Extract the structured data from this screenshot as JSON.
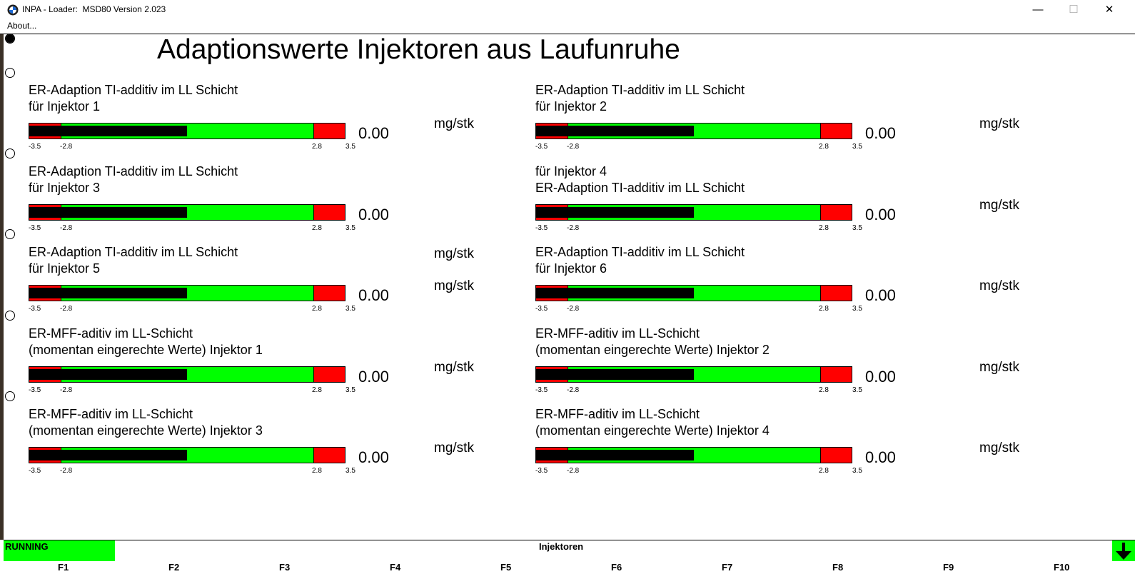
{
  "window": {
    "title": "INPA - Loader:  MSD80 Version 2.023",
    "min_glyph": "—",
    "max_glyph": "☐",
    "close_glyph": "✕"
  },
  "menu": {
    "about": "About..."
  },
  "page": {
    "title": "Adaptionswerte Injektoren aus Laufunruhe"
  },
  "radios": [
    {
      "selected": true
    },
    {
      "selected": false
    },
    {
      "selected": false
    },
    {
      "selected": false
    },
    {
      "selected": false
    },
    {
      "selected": false
    }
  ],
  "gauges": [
    {
      "line1": "ER-Adaption TI-additiv im LL Schicht",
      "line2": "für Injektor 1",
      "value": "0.00",
      "unit": "mg/stk"
    },
    {
      "line1": "ER-Adaption TI-additiv im LL Schicht",
      "line2": "für Injektor 2",
      "value": "0.00",
      "unit": "mg/stk"
    },
    {
      "line1": "ER-Adaption TI-additiv im LL Schicht",
      "line2": "für Injektor 3",
      "value": "0.00",
      "unit": "mg/stk"
    },
    {
      "line1": "für Injektor 4",
      "line2": "ER-Adaption TI-additiv im LL Schicht",
      "value": "0.00",
      "unit": "mg/stk"
    },
    {
      "line1": "ER-Adaption TI-additiv im LL Schicht",
      "line2": "für Injektor 5",
      "value": "0.00",
      "unit": "mg/stk"
    },
    {
      "line1": "ER-Adaption TI-additiv im LL Schicht",
      "line2": "für Injektor 6",
      "value": "0.00",
      "unit": "mg/stk"
    },
    {
      "line1": "ER-MFF-aditiv im LL-Schicht",
      "line2": "(momentan eingerechte Werte) Injektor 1",
      "value": "0.00",
      "unit": "mg/stk"
    },
    {
      "line1": "ER-MFF-aditiv im LL-Schicht",
      "line2": "(momentan eingerechte Werte) Injektor 2",
      "value": "0.00",
      "unit": "mg/stk"
    },
    {
      "line1": "ER-MFF-aditiv im LL-Schicht",
      "line2": "(momentan eingerechte Werte) Injektor 3",
      "value": "0.00",
      "unit": "mg/stk"
    },
    {
      "line1": "ER-MFF-aditiv im LL-Schicht",
      "line2": "(momentan eingerechte Werte) Injektor 4",
      "value": "0.00",
      "unit": "mg/stk"
    }
  ],
  "scale": {
    "min": "-3.5",
    "low": "-2.8",
    "high": "2.8",
    "max": "3.5",
    "min_value": -3.5,
    "low_value": -2.8,
    "high_value": 2.8,
    "max_value": 3.5
  },
  "colors": {
    "ok": "#00ff00",
    "limit": "#ff0000",
    "indicator": "#000000"
  },
  "status": {
    "state": "RUNNING",
    "screen": "Injektoren",
    "arrow_icon": "down-arrow-icon",
    "fkeys": [
      "F1",
      "F2",
      "F3",
      "F4",
      "F5",
      "F6",
      "F7",
      "F8",
      "F9",
      "F10"
    ]
  }
}
